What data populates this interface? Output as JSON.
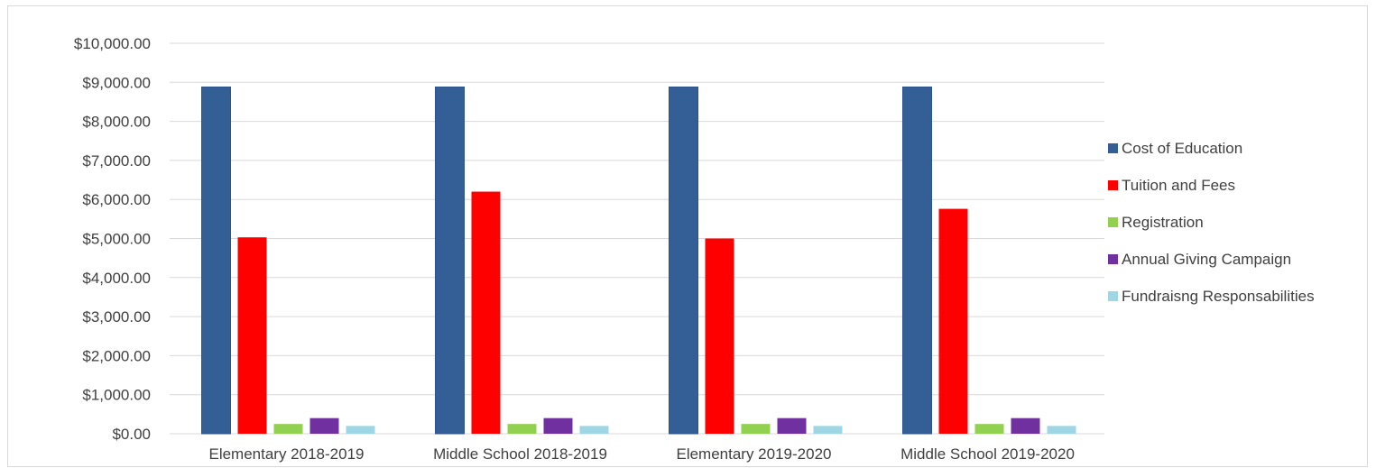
{
  "chart_data": {
    "type": "bar",
    "title": "",
    "xlabel": "",
    "ylabel": "",
    "ylim": [
      0,
      10000
    ],
    "ytick_values": [
      0,
      1000,
      2000,
      3000,
      4000,
      5000,
      6000,
      7000,
      8000,
      9000,
      10000
    ],
    "ytick_labels": [
      "$0.00",
      "$1,000.00",
      "$2,000.00",
      "$3,000.00",
      "$4,000.00",
      "$5,000.00",
      "$6,000.00",
      "$7,000.00",
      "$8,000.00",
      "$9,000.00",
      "$10,000.00"
    ],
    "grid": true,
    "legend_position": "right",
    "categories": [
      "Elementary 2018-2019",
      "Middle School 2018-2019",
      "Elementary 2019-2020",
      "Middle School 2019-2020"
    ],
    "series": [
      {
        "name": "Cost of Education",
        "color": "#335f96",
        "values": [
          8880,
          8880,
          8880,
          8880
        ]
      },
      {
        "name": "Tuition and Fees",
        "color": "#ff0000",
        "values": [
          5030,
          6200,
          5000,
          5760
        ]
      },
      {
        "name": "Registration",
        "color": "#92d050",
        "values": [
          250,
          250,
          250,
          250
        ]
      },
      {
        "name": "Annual Giving Campaign",
        "color": "#7030a0",
        "values": [
          400,
          400,
          400,
          400
        ]
      },
      {
        "name": "Fundraisng Responsabilities",
        "color": "#9fd6e3",
        "values": [
          200,
          200,
          200,
          200
        ]
      }
    ]
  }
}
